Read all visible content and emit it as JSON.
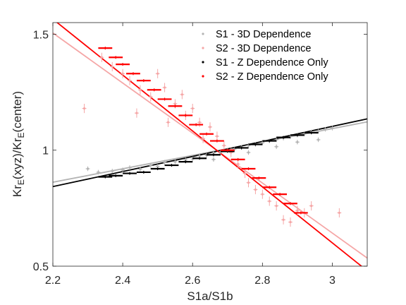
{
  "chart_data": {
    "type": "scatter",
    "title": "",
    "xlabel": "S1a/S1b",
    "ylabel_parts": [
      "Kr",
      "E",
      "(xyz)/Kr",
      "E",
      "(center)"
    ],
    "xlim": [
      2.2,
      3.1
    ],
    "ylim": [
      0.5,
      1.55
    ],
    "x_ticks": [
      2.2,
      2.4,
      2.6,
      2.8,
      3.0
    ],
    "x_tick_labels": [
      "2.2",
      "2.4",
      "2.6",
      "2.8",
      "3"
    ],
    "y_ticks": [
      0.5,
      1.0,
      1.5
    ],
    "y_tick_labels": [
      "0.5",
      "1",
      "1.5"
    ],
    "legend_position": "top-right",
    "series": [
      {
        "name": "S1 - 3D Dependence",
        "color": "#b3b3b3",
        "marker": "dot-with-errorbars",
        "trend_fit": {
          "x": [
            2.2,
            3.1
          ],
          "y": [
            0.862,
            1.122
          ]
        },
        "points": [
          {
            "x": 2.3,
            "y": 0.92,
            "xerr": 0.006,
            "yerr": 0.01
          },
          {
            "x": 2.33,
            "y": 0.905,
            "xerr": 0.006,
            "yerr": 0.01
          },
          {
            "x": 2.37,
            "y": 0.91,
            "xerr": 0.006,
            "yerr": 0.01
          },
          {
            "x": 2.4,
            "y": 0.915,
            "xerr": 0.006,
            "yerr": 0.01
          },
          {
            "x": 2.42,
            "y": 0.925,
            "xerr": 0.006,
            "yerr": 0.01
          },
          {
            "x": 2.45,
            "y": 0.918,
            "xerr": 0.006,
            "yerr": 0.01
          },
          {
            "x": 2.48,
            "y": 0.935,
            "xerr": 0.006,
            "yerr": 0.01
          },
          {
            "x": 2.5,
            "y": 0.93,
            "xerr": 0.006,
            "yerr": 0.01
          },
          {
            "x": 2.52,
            "y": 0.948,
            "xerr": 0.006,
            "yerr": 0.01
          },
          {
            "x": 2.55,
            "y": 0.95,
            "xerr": 0.006,
            "yerr": 0.01
          },
          {
            "x": 2.58,
            "y": 0.958,
            "xerr": 0.006,
            "yerr": 0.01
          },
          {
            "x": 2.6,
            "y": 0.962,
            "xerr": 0.006,
            "yerr": 0.01
          },
          {
            "x": 2.62,
            "y": 0.975,
            "xerr": 0.006,
            "yerr": 0.01
          },
          {
            "x": 2.64,
            "y": 0.978,
            "xerr": 0.006,
            "yerr": 0.01
          },
          {
            "x": 2.66,
            "y": 0.988,
            "xerr": 0.006,
            "yerr": 0.01
          },
          {
            "x": 2.68,
            "y": 0.992,
            "xerr": 0.006,
            "yerr": 0.01
          },
          {
            "x": 2.7,
            "y": 1.0,
            "xerr": 0.006,
            "yerr": 0.01
          },
          {
            "x": 2.72,
            "y": 1.005,
            "xerr": 0.006,
            "yerr": 0.01
          },
          {
            "x": 2.74,
            "y": 1.012,
            "xerr": 0.006,
            "yerr": 0.01
          },
          {
            "x": 2.76,
            "y": 1.02,
            "xerr": 0.006,
            "yerr": 0.01
          },
          {
            "x": 2.78,
            "y": 1.025,
            "xerr": 0.006,
            "yerr": 0.01
          },
          {
            "x": 2.8,
            "y": 1.032,
            "xerr": 0.006,
            "yerr": 0.01
          },
          {
            "x": 2.82,
            "y": 1.04,
            "xerr": 0.006,
            "yerr": 0.01
          },
          {
            "x": 2.84,
            "y": 1.045,
            "xerr": 0.006,
            "yerr": 0.01
          },
          {
            "x": 2.86,
            "y": 1.052,
            "xerr": 0.006,
            "yerr": 0.01
          },
          {
            "x": 2.88,
            "y": 1.058,
            "xerr": 0.006,
            "yerr": 0.01
          },
          {
            "x": 2.9,
            "y": 1.065,
            "xerr": 0.006,
            "yerr": 0.01
          },
          {
            "x": 2.92,
            "y": 1.07,
            "xerr": 0.006,
            "yerr": 0.01
          },
          {
            "x": 2.94,
            "y": 1.078,
            "xerr": 0.006,
            "yerr": 0.01
          },
          {
            "x": 2.96,
            "y": 1.082,
            "xerr": 0.006,
            "yerr": 0.01
          },
          {
            "x": 2.98,
            "y": 1.09,
            "xerr": 0.006,
            "yerr": 0.01
          },
          {
            "x": 3.0,
            "y": 1.095,
            "xerr": 0.006,
            "yerr": 0.01
          },
          {
            "x": 2.96,
            "y": 1.045,
            "xerr": 0.006,
            "yerr": 0.01
          },
          {
            "x": 2.9,
            "y": 1.035,
            "xerr": 0.006,
            "yerr": 0.01
          },
          {
            "x": 2.84,
            "y": 1.015,
            "xerr": 0.006,
            "yerr": 0.01
          },
          {
            "x": 2.76,
            "y": 0.99,
            "xerr": 0.006,
            "yerr": 0.01
          },
          {
            "x": 2.66,
            "y": 0.96,
            "xerr": 0.006,
            "yerr": 0.01
          }
        ]
      },
      {
        "name": "S2 - 3D Dependence",
        "color": "#f5a6a6",
        "marker": "dot-with-errorbars",
        "trend_fit": {
          "x": [
            2.2,
            3.1
          ],
          "y": [
            1.505,
            0.535
          ]
        },
        "points": [
          {
            "x": 2.29,
            "y": 1.18,
            "xerr": 0.006,
            "yerr": 0.02
          },
          {
            "x": 2.34,
            "y": 1.4,
            "xerr": 0.006,
            "yerr": 0.02
          },
          {
            "x": 2.37,
            "y": 1.36,
            "xerr": 0.006,
            "yerr": 0.02
          },
          {
            "x": 2.4,
            "y": 1.33,
            "xerr": 0.006,
            "yerr": 0.02
          },
          {
            "x": 2.42,
            "y": 1.3,
            "xerr": 0.006,
            "yerr": 0.02
          },
          {
            "x": 2.44,
            "y": 1.16,
            "xerr": 0.006,
            "yerr": 0.02
          },
          {
            "x": 2.45,
            "y": 1.26,
            "xerr": 0.006,
            "yerr": 0.02
          },
          {
            "x": 2.48,
            "y": 1.23,
            "xerr": 0.006,
            "yerr": 0.02
          },
          {
            "x": 2.5,
            "y": 1.33,
            "xerr": 0.006,
            "yerr": 0.02
          },
          {
            "x": 2.52,
            "y": 1.27,
            "xerr": 0.006,
            "yerr": 0.02
          },
          {
            "x": 2.53,
            "y": 1.12,
            "xerr": 0.006,
            "yerr": 0.02
          },
          {
            "x": 2.55,
            "y": 1.2,
            "xerr": 0.006,
            "yerr": 0.02
          },
          {
            "x": 2.57,
            "y": 1.24,
            "xerr": 0.006,
            "yerr": 0.02
          },
          {
            "x": 2.58,
            "y": 1.15,
            "xerr": 0.006,
            "yerr": 0.02
          },
          {
            "x": 2.6,
            "y": 1.18,
            "xerr": 0.006,
            "yerr": 0.02
          },
          {
            "x": 2.62,
            "y": 1.12,
            "xerr": 0.006,
            "yerr": 0.02
          },
          {
            "x": 2.63,
            "y": 1.05,
            "xerr": 0.006,
            "yerr": 0.02
          },
          {
            "x": 2.65,
            "y": 1.1,
            "xerr": 0.006,
            "yerr": 0.02
          },
          {
            "x": 2.67,
            "y": 1.06,
            "xerr": 0.006,
            "yerr": 0.02
          },
          {
            "x": 2.69,
            "y": 1.02,
            "xerr": 0.006,
            "yerr": 0.02
          },
          {
            "x": 2.71,
            "y": 0.99,
            "xerr": 0.006,
            "yerr": 0.02
          },
          {
            "x": 2.73,
            "y": 0.94,
            "xerr": 0.006,
            "yerr": 0.02
          },
          {
            "x": 2.75,
            "y": 0.9,
            "xerr": 0.006,
            "yerr": 0.02
          },
          {
            "x": 2.76,
            "y": 0.86,
            "xerr": 0.006,
            "yerr": 0.02
          },
          {
            "x": 2.78,
            "y": 0.83,
            "xerr": 0.006,
            "yerr": 0.02
          },
          {
            "x": 2.8,
            "y": 0.81,
            "xerr": 0.006,
            "yerr": 0.02
          },
          {
            "x": 2.82,
            "y": 0.78,
            "xerr": 0.006,
            "yerr": 0.02
          },
          {
            "x": 2.84,
            "y": 0.76,
            "xerr": 0.006,
            "yerr": 0.02
          },
          {
            "x": 2.86,
            "y": 0.7,
            "xerr": 0.006,
            "yerr": 0.02
          },
          {
            "x": 2.88,
            "y": 0.69,
            "xerr": 0.006,
            "yerr": 0.02
          },
          {
            "x": 2.9,
            "y": 0.74,
            "xerr": 0.006,
            "yerr": 0.02
          },
          {
            "x": 2.92,
            "y": 0.73,
            "xerr": 0.006,
            "yerr": 0.02
          },
          {
            "x": 2.94,
            "y": 0.76,
            "xerr": 0.006,
            "yerr": 0.02
          },
          {
            "x": 3.02,
            "y": 0.73,
            "xerr": 0.006,
            "yerr": 0.02
          }
        ]
      },
      {
        "name": "S1 - Z Dependence Only",
        "color": "#000000",
        "marker": "horizontal-errorbar",
        "trend_fit": {
          "x": [
            2.2,
            3.1
          ],
          "y": [
            0.843,
            1.135
          ]
        },
        "points": [
          {
            "x": 2.35,
            "y": 0.885,
            "xerr": 0.02
          },
          {
            "x": 2.38,
            "y": 0.89,
            "xerr": 0.02
          },
          {
            "x": 2.42,
            "y": 0.9,
            "xerr": 0.02
          },
          {
            "x": 2.46,
            "y": 0.905,
            "xerr": 0.02
          },
          {
            "x": 2.5,
            "y": 0.92,
            "xerr": 0.02
          },
          {
            "x": 2.54,
            "y": 0.935,
            "xerr": 0.02
          },
          {
            "x": 2.58,
            "y": 0.95,
            "xerr": 0.02
          },
          {
            "x": 2.62,
            "y": 0.965,
            "xerr": 0.02
          },
          {
            "x": 2.66,
            "y": 0.98,
            "xerr": 0.02
          },
          {
            "x": 2.7,
            "y": 0.995,
            "xerr": 0.02
          },
          {
            "x": 2.74,
            "y": 1.01,
            "xerr": 0.02
          },
          {
            "x": 2.78,
            "y": 1.025,
            "xerr": 0.02
          },
          {
            "x": 2.82,
            "y": 1.04,
            "xerr": 0.02
          },
          {
            "x": 2.86,
            "y": 1.055,
            "xerr": 0.02
          },
          {
            "x": 2.9,
            "y": 1.065,
            "xerr": 0.02
          },
          {
            "x": 2.94,
            "y": 1.075,
            "xerr": 0.02
          }
        ]
      },
      {
        "name": "S2 - Z Dependence Only",
        "color": "#ff0000",
        "marker": "horizontal-errorbar",
        "trend_fit": {
          "x": [
            2.2,
            3.1
          ],
          "y": [
            1.565,
            0.48
          ]
        },
        "points": [
          {
            "x": 2.35,
            "y": 1.44,
            "xerr": 0.02
          },
          {
            "x": 2.38,
            "y": 1.4,
            "xerr": 0.02
          },
          {
            "x": 2.4,
            "y": 1.37,
            "xerr": 0.02
          },
          {
            "x": 2.43,
            "y": 1.33,
            "xerr": 0.02
          },
          {
            "x": 2.46,
            "y": 1.3,
            "xerr": 0.02
          },
          {
            "x": 2.49,
            "y": 1.26,
            "xerr": 0.02
          },
          {
            "x": 2.52,
            "y": 1.22,
            "xerr": 0.02
          },
          {
            "x": 2.55,
            "y": 1.19,
            "xerr": 0.02
          },
          {
            "x": 2.58,
            "y": 1.15,
            "xerr": 0.02
          },
          {
            "x": 2.61,
            "y": 1.11,
            "xerr": 0.02
          },
          {
            "x": 2.64,
            "y": 1.07,
            "xerr": 0.02
          },
          {
            "x": 2.67,
            "y": 1.04,
            "xerr": 0.02
          },
          {
            "x": 2.7,
            "y": 1.0,
            "xerr": 0.02
          },
          {
            "x": 2.73,
            "y": 0.96,
            "xerr": 0.02
          },
          {
            "x": 2.76,
            "y": 0.92,
            "xerr": 0.02
          },
          {
            "x": 2.79,
            "y": 0.88,
            "xerr": 0.02
          },
          {
            "x": 2.82,
            "y": 0.84,
            "xerr": 0.02
          },
          {
            "x": 2.85,
            "y": 0.81,
            "xerr": 0.02
          },
          {
            "x": 2.88,
            "y": 0.77,
            "xerr": 0.02
          },
          {
            "x": 2.91,
            "y": 0.73,
            "xerr": 0.02
          }
        ]
      }
    ]
  }
}
